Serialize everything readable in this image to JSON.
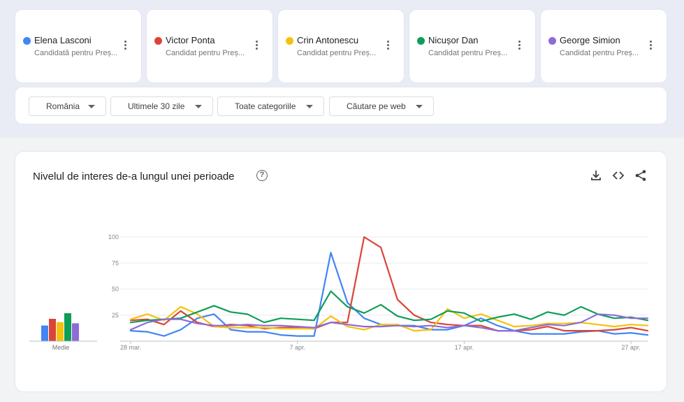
{
  "terms": [
    {
      "name": "Elena Lasconi",
      "subtitle": "Candidată pentru Preș...",
      "color": "#4285f4"
    },
    {
      "name": "Victor Ponta",
      "subtitle": "Candidat pentru Preș...",
      "color": "#db4437"
    },
    {
      "name": "Crin Antonescu",
      "subtitle": "Candidat pentru Preș...",
      "color": "#f4c20d"
    },
    {
      "name": "Nicușor Dan",
      "subtitle": "Candidat pentru Preș...",
      "color": "#0f9d58"
    },
    {
      "name": "George Simion",
      "subtitle": "Candidat pentru Preș...",
      "color": "#8e6bd8"
    }
  ],
  "filters": {
    "region": "România",
    "period": "Ultimele 30 zile",
    "category": "Toate categoriile",
    "search_type": "Căutare pe web"
  },
  "chart": {
    "title": "Nivelul de interes de-a lungul unei perioade",
    "help_icon": "?",
    "tool_icons": [
      "download-icon",
      "embed-icon",
      "share-icon"
    ],
    "averages_label": "Medie"
  },
  "chart_data": {
    "type": "line",
    "y_ticks": [
      "100",
      "75",
      "50",
      "25"
    ],
    "x_tick_labels": [
      "28 mar.",
      "7 apr.",
      "17 apr.",
      "27 apr."
    ],
    "x_tick_index": [
      0,
      10,
      20,
      30
    ],
    "ylim": [
      0,
      100
    ],
    "grid": true,
    "averages": [
      14,
      20,
      17,
      25,
      16
    ],
    "series": [
      {
        "name": "Elena Lasconi",
        "color": "#4285f4",
        "values": [
          10,
          9,
          5,
          11,
          22,
          26,
          11,
          9,
          9,
          6,
          5,
          5,
          85,
          37,
          22,
          16,
          15,
          15,
          11,
          11,
          15,
          22,
          15,
          10,
          7,
          7,
          7,
          9,
          10,
          7,
          8,
          6
        ]
      },
      {
        "name": "Victor Ponta",
        "color": "#db4437",
        "values": [
          20,
          21,
          16,
          29,
          18,
          14,
          16,
          15,
          12,
          13,
          13,
          12,
          18,
          18,
          100,
          90,
          40,
          25,
          18,
          16,
          15,
          15,
          10,
          10,
          11,
          14,
          10,
          10,
          10,
          11,
          13,
          10
        ]
      },
      {
        "name": "Crin Antonescu",
        "color": "#f4c20d",
        "values": [
          21,
          26,
          20,
          33,
          26,
          14,
          13,
          13,
          13,
          12,
          12,
          12,
          24,
          14,
          11,
          16,
          16,
          10,
          11,
          31,
          22,
          26,
          20,
          14,
          15,
          17,
          17,
          18,
          16,
          14,
          16,
          15
        ]
      },
      {
        "name": "Nicușor Dan",
        "color": "#0f9d58",
        "values": [
          18,
          20,
          21,
          22,
          28,
          34,
          28,
          26,
          18,
          22,
          21,
          20,
          48,
          33,
          27,
          35,
          24,
          20,
          21,
          29,
          27,
          19,
          23,
          26,
          21,
          28,
          25,
          33,
          26,
          22,
          23,
          20
        ]
      },
      {
        "name": "George Simion",
        "color": "#8e6bd8",
        "values": [
          11,
          18,
          21,
          21,
          17,
          15,
          15,
          16,
          15,
          15,
          14,
          13,
          18,
          16,
          14,
          14,
          15,
          14,
          15,
          13,
          15,
          13,
          10,
          10,
          13,
          16,
          15,
          18,
          26,
          25,
          22,
          22
        ]
      }
    ]
  }
}
